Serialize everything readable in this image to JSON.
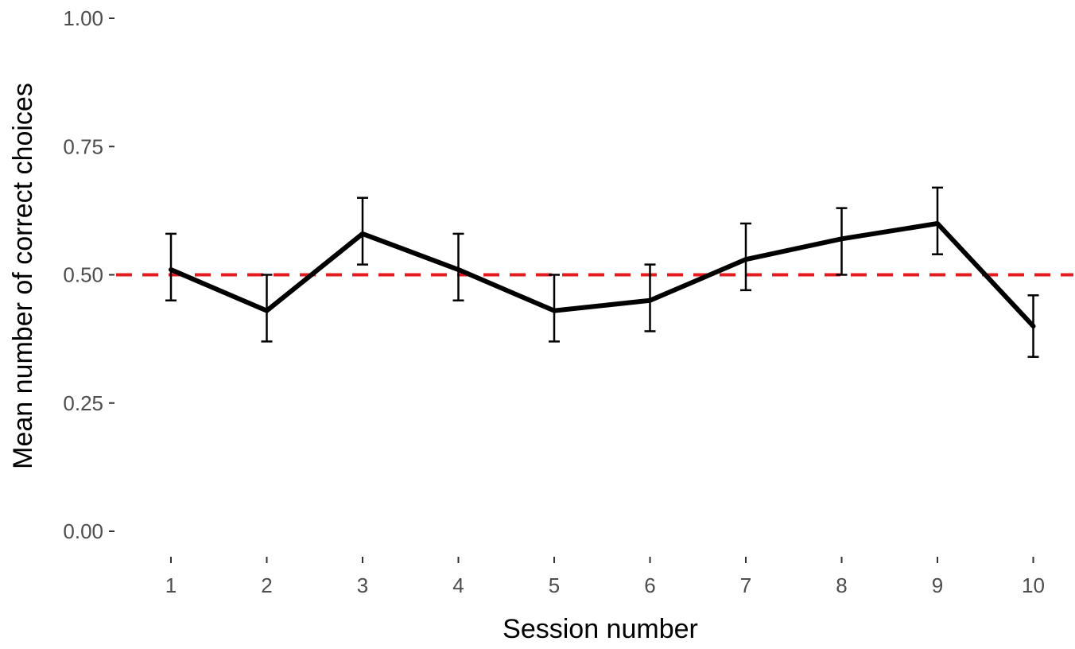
{
  "chart_data": {
    "type": "line",
    "x": [
      1,
      2,
      3,
      4,
      5,
      6,
      7,
      8,
      9,
      10
    ],
    "series": [
      {
        "values": [
          0.51,
          0.43,
          0.58,
          0.51,
          0.43,
          0.45,
          0.53,
          0.57,
          0.6,
          0.4
        ],
        "error_low": [
          0.45,
          0.37,
          0.52,
          0.45,
          0.37,
          0.39,
          0.47,
          0.5,
          0.54,
          0.34
        ],
        "error_high": [
          0.58,
          0.5,
          0.65,
          0.58,
          0.5,
          0.52,
          0.6,
          0.63,
          0.67,
          0.46
        ],
        "color": "#000000"
      }
    ],
    "reference_line": {
      "y": 0.5,
      "style": "dashed",
      "color": "#e41a1c"
    },
    "xlabel": "Session number",
    "ylabel": "Mean number of correct choices",
    "xlim": [
      0.5,
      10.5
    ],
    "ylim": [
      0,
      1
    ],
    "yticks": [
      "0.00",
      "0.25",
      "0.50",
      "0.75",
      "1.00"
    ],
    "xticks": [
      "1",
      "2",
      "3",
      "4",
      "5",
      "6",
      "7",
      "8",
      "9",
      "10"
    ],
    "grid": false,
    "legend": "none"
  }
}
